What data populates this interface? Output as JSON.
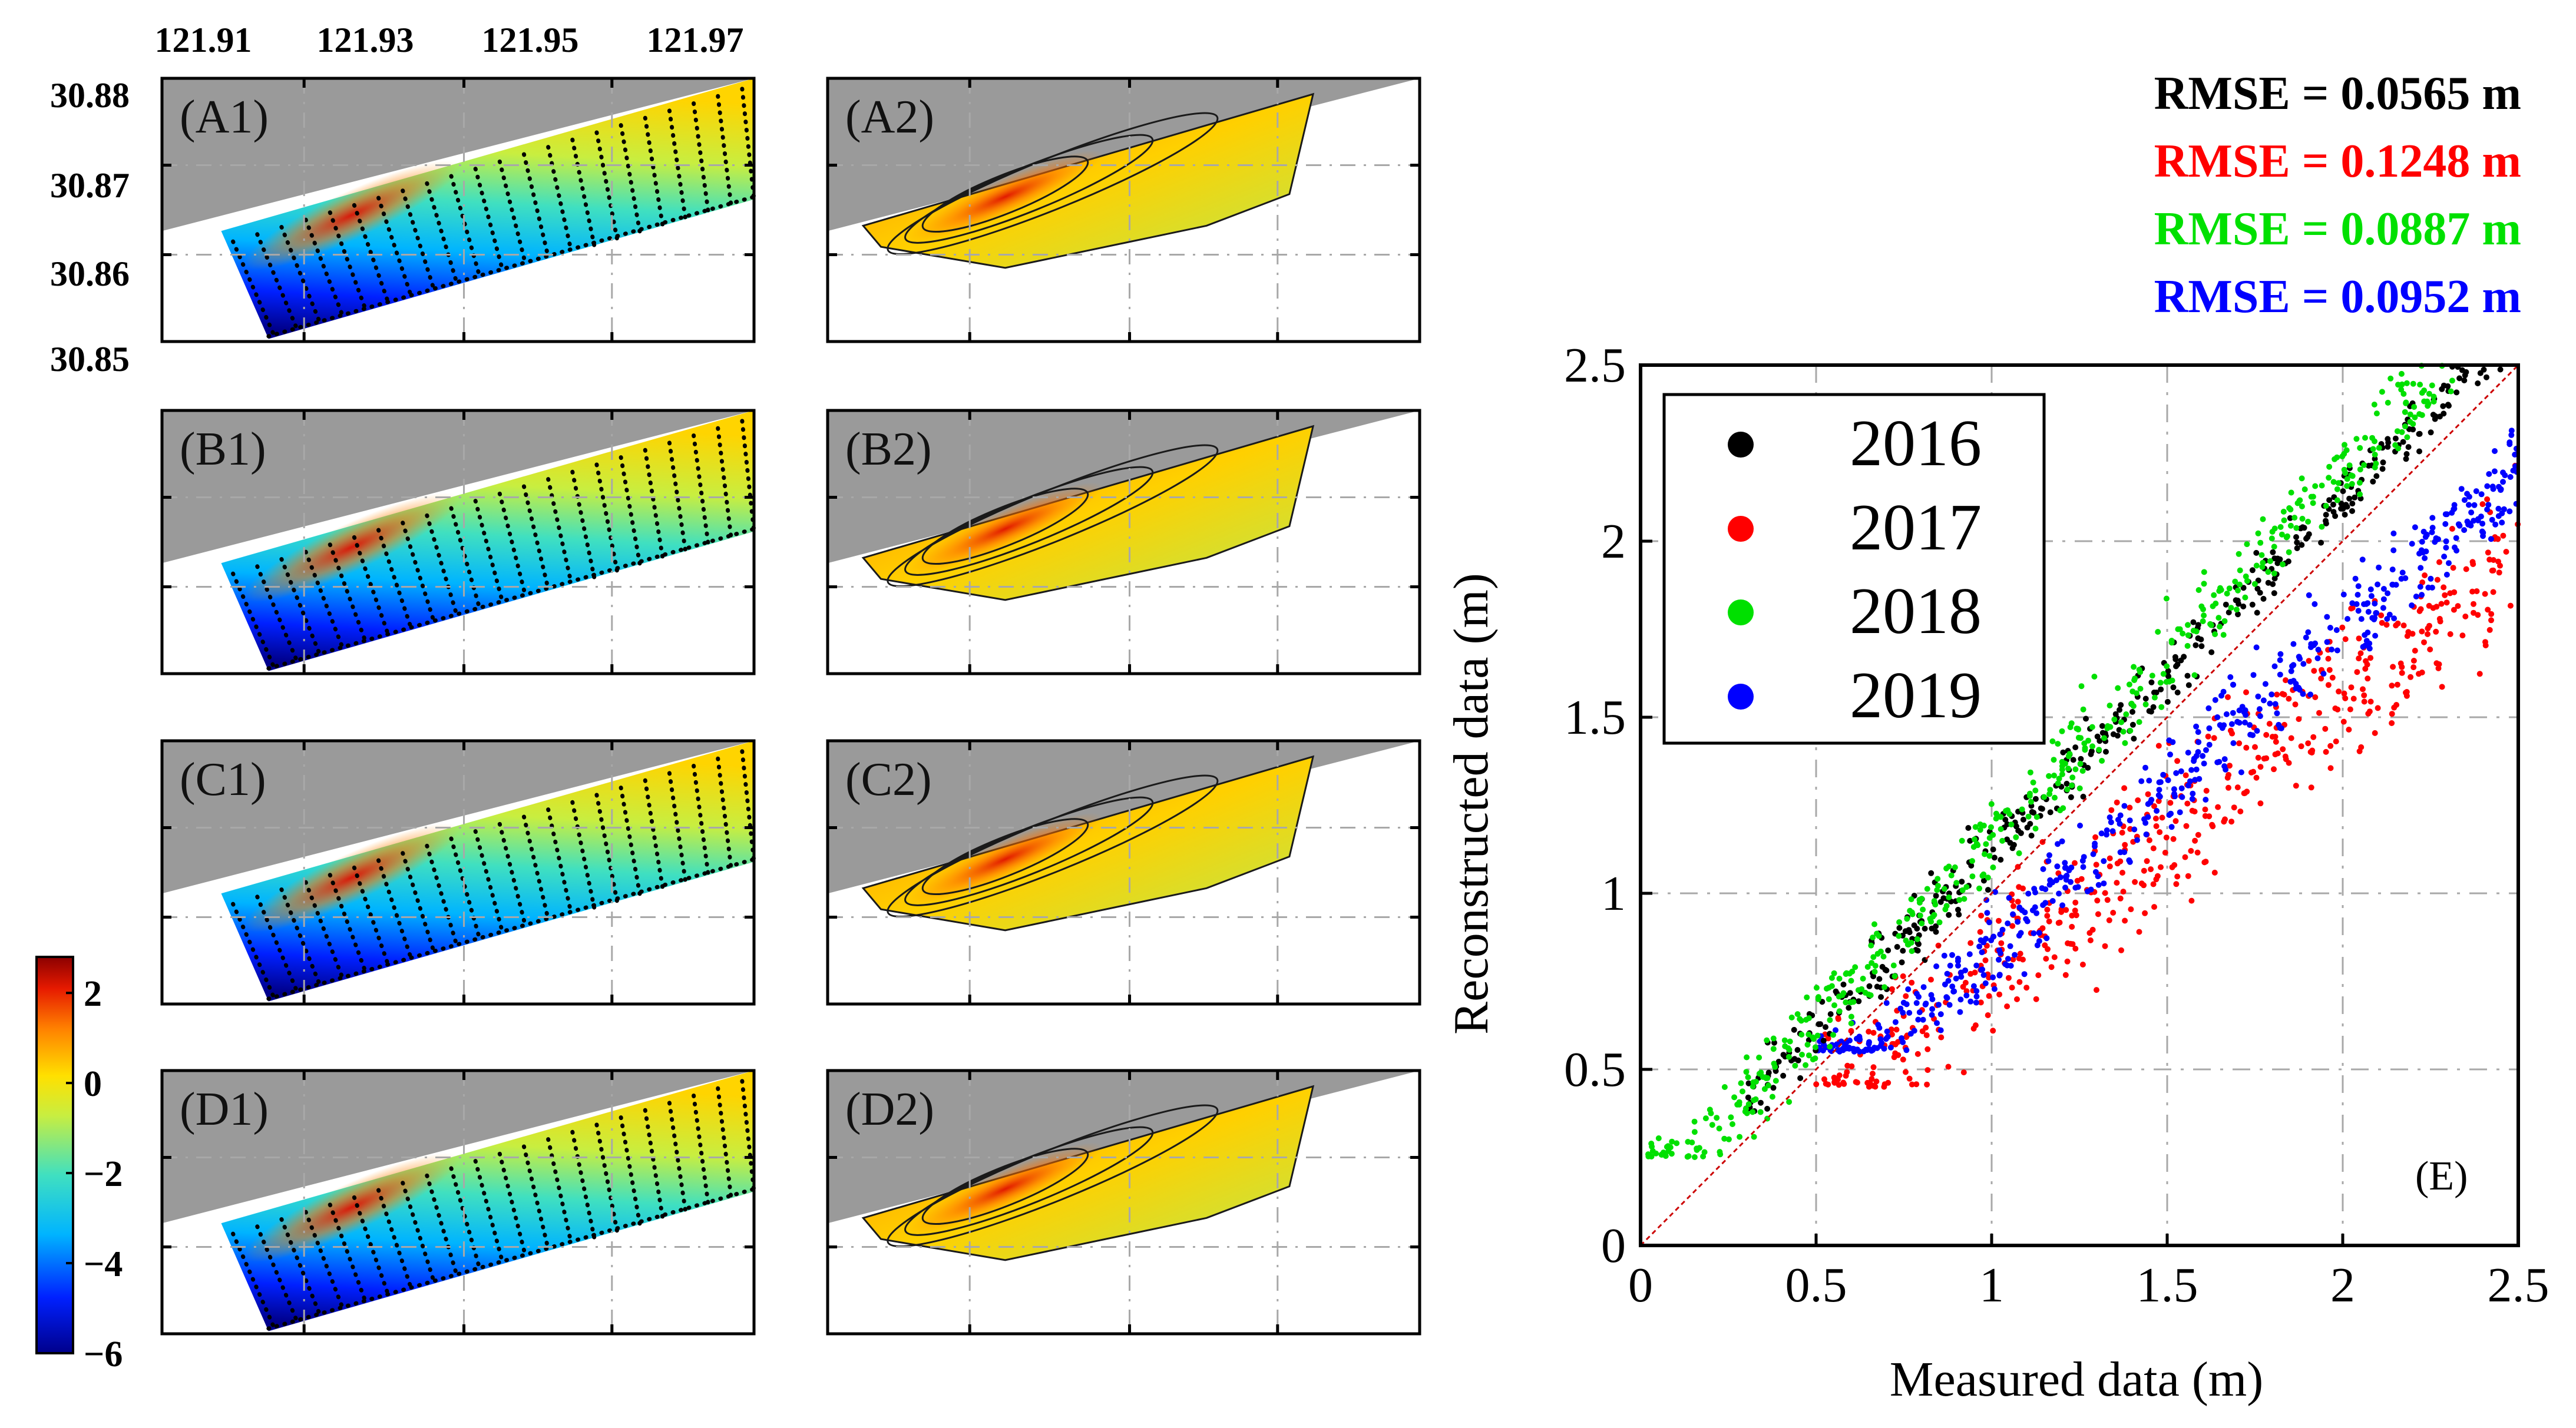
{
  "colors": {
    "land": "#9a9a9a",
    "frame": "#000000",
    "grid": "#a8a8a8",
    "y2016": "#000000",
    "y2017": "#ff0000",
    "y2018": "#00e000",
    "y2019": "#0000ff",
    "contour": "#1a1a1a"
  },
  "map_panels": {
    "lon_ticks": [
      "121.91",
      "121.93",
      "121.95",
      "121.97"
    ],
    "lat_ticks": [
      "30.88",
      "30.87",
      "30.86",
      "30.85"
    ],
    "labels": {
      "A1": "(A1)",
      "A2": "(A2)",
      "B1": "(B1)",
      "B2": "(B2)",
      "C1": "(C1)",
      "C2": "(C2)",
      "D1": "(D1)",
      "D2": "(D2)"
    }
  },
  "colorbar": {
    "ticks": [
      "2",
      "0",
      "−2",
      "−4",
      "−6"
    ],
    "range": [
      -6,
      2.8
    ]
  },
  "chart_data": {
    "type": "scatter",
    "panel_label": "(E)",
    "xlabel": "Measured data (m)",
    "ylabel": "Reconstructed data (m)",
    "xlim": [
      0,
      2.5
    ],
    "ylim": [
      0,
      2.5
    ],
    "x_ticks": [
      "0",
      "0.5",
      "1",
      "1.5",
      "2",
      "2.5"
    ],
    "y_ticks": [
      "0",
      "0.5",
      "1",
      "1.5",
      "2",
      "2.5"
    ],
    "grid": true,
    "legend_position": "top-left",
    "reference_line": {
      "x": [
        0,
        2.5
      ],
      "y": [
        0,
        2.5
      ],
      "style": "dashed"
    },
    "series": [
      {
        "name": "2016",
        "rmse_label": "RMSE = 0.0565 m",
        "model": {
          "slope": 1.0,
          "shift": 0.12,
          "floor": 0.38,
          "spread": 0.09
        }
      },
      {
        "name": "2017",
        "rmse_label": "RMSE = 0.1248 m",
        "model": {
          "slope": 0.78,
          "shift": 0.0,
          "floor": 0.45,
          "spread": 0.22
        }
      },
      {
        "name": "2018",
        "rmse_label": "RMSE = 0.0887 m",
        "model": {
          "slope": 1.05,
          "shift": 0.1,
          "floor": 0.25,
          "spread": 0.12
        }
      },
      {
        "name": "2019",
        "rmse_label": "RMSE = 0.0952 m",
        "model": {
          "slope": 0.9,
          "shift": -0.05,
          "floor": 0.55,
          "spread": 0.13
        }
      }
    ]
  }
}
